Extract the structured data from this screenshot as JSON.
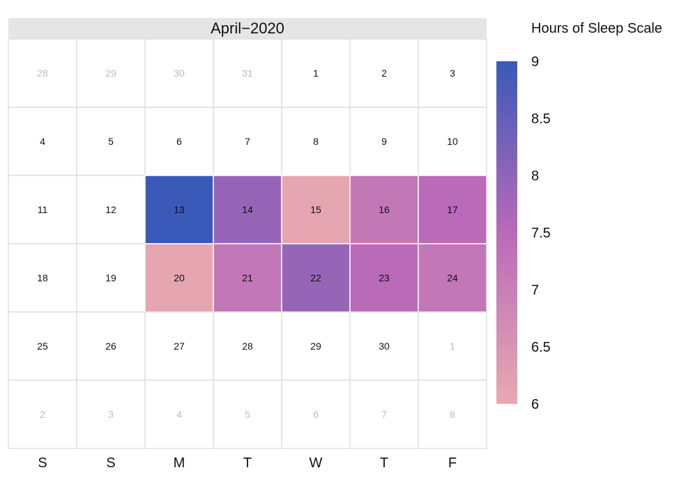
{
  "chart_data": {
    "type": "heatmap",
    "title": "April−2020",
    "legend": {
      "title": "Hours of Sleep Scale",
      "ticks": [
        "9",
        "8.5",
        "8",
        "7.5",
        "7",
        "6.5",
        "6"
      ],
      "min": 6,
      "max": 9,
      "colors": {
        "low": "#E8A9B1",
        "mid": "#B96AB8",
        "high": "#3A59B8"
      }
    },
    "weekday_labels": [
      "S",
      "S",
      "M",
      "T",
      "W",
      "T",
      "F"
    ],
    "weeks": [
      [
        {
          "day": "28",
          "muted": true
        },
        {
          "day": "29",
          "muted": true
        },
        {
          "day": "30",
          "muted": true
        },
        {
          "day": "31",
          "muted": true
        },
        {
          "day": "1"
        },
        {
          "day": "2"
        },
        {
          "day": "3"
        }
      ],
      [
        {
          "day": "4"
        },
        {
          "day": "5"
        },
        {
          "day": "6"
        },
        {
          "day": "7"
        },
        {
          "day": "8"
        },
        {
          "day": "9"
        },
        {
          "day": "10"
        }
      ],
      [
        {
          "day": "11"
        },
        {
          "day": "12"
        },
        {
          "day": "13",
          "hours": 9.0
        },
        {
          "day": "14",
          "hours": 7.9
        },
        {
          "day": "15",
          "hours": 6.1
        },
        {
          "day": "16",
          "hours": 7.2
        },
        {
          "day": "17",
          "hours": 7.5
        }
      ],
      [
        {
          "day": "18"
        },
        {
          "day": "19"
        },
        {
          "day": "20",
          "hours": 6.1
        },
        {
          "day": "21",
          "hours": 7.2
        },
        {
          "day": "22",
          "hours": 7.9
        },
        {
          "day": "23",
          "hours": 7.5
        },
        {
          "day": "24",
          "hours": 7.2
        }
      ],
      [
        {
          "day": "25"
        },
        {
          "day": "26"
        },
        {
          "day": "27"
        },
        {
          "day": "28"
        },
        {
          "day": "29"
        },
        {
          "day": "30"
        },
        {
          "day": "1",
          "muted": true
        }
      ],
      [
        {
          "day": "2",
          "muted": true
        },
        {
          "day": "3",
          "muted": true
        },
        {
          "day": "4",
          "muted": true
        },
        {
          "day": "5",
          "muted": true
        },
        {
          "day": "6",
          "muted": true
        },
        {
          "day": "7",
          "muted": true
        },
        {
          "day": "8",
          "muted": true
        }
      ]
    ],
    "text_colors": {
      "day": "#111111",
      "muted_day": "#BBBBBB"
    },
    "style_colors": {
      "header_bg": "#E5E5E5",
      "grid_line": "#E0E0E0",
      "empty_cell": "#FFFFFF"
    }
  }
}
